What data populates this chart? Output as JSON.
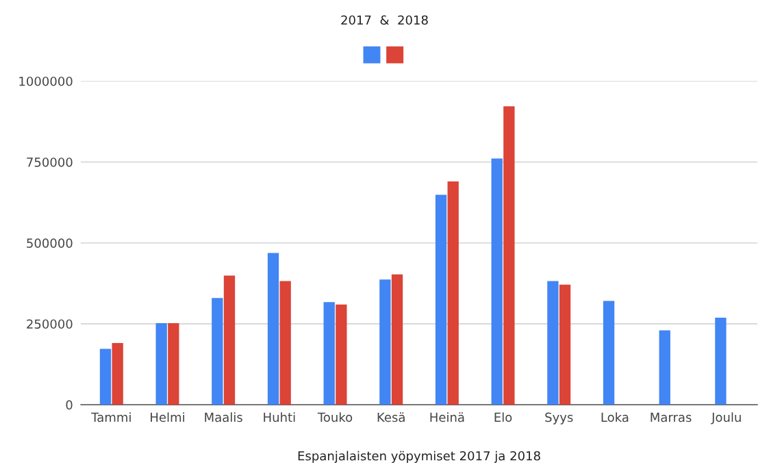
{
  "chart_data": {
    "type": "bar",
    "title": "2017  &  2018",
    "xlabel": "Espanjalaisten yöpymiset 2017 ja 2018",
    "categories": [
      "Tammi",
      "Helmi",
      "Maalis",
      "Huhti",
      "Touko",
      "Kesä",
      "Heinä",
      "Elo",
      "Syys",
      "Loka",
      "Marras",
      "Joulu"
    ],
    "series": [
      {
        "color": "#4285f4",
        "values": [
          173000,
          252000,
          330000,
          469000,
          317000,
          387000,
          649000,
          761000,
          382000,
          321000,
          230000,
          269000
        ]
      },
      {
        "color": "#db4437",
        "values": [
          191000,
          252000,
          399000,
          382000,
          310000,
          403000,
          690000,
          922000,
          371000,
          null,
          null,
          null
        ]
      }
    ],
    "ylim": [
      0,
      1000000
    ],
    "yticks": [
      0,
      250000,
      500000,
      750000,
      1000000
    ],
    "grid": "y"
  }
}
